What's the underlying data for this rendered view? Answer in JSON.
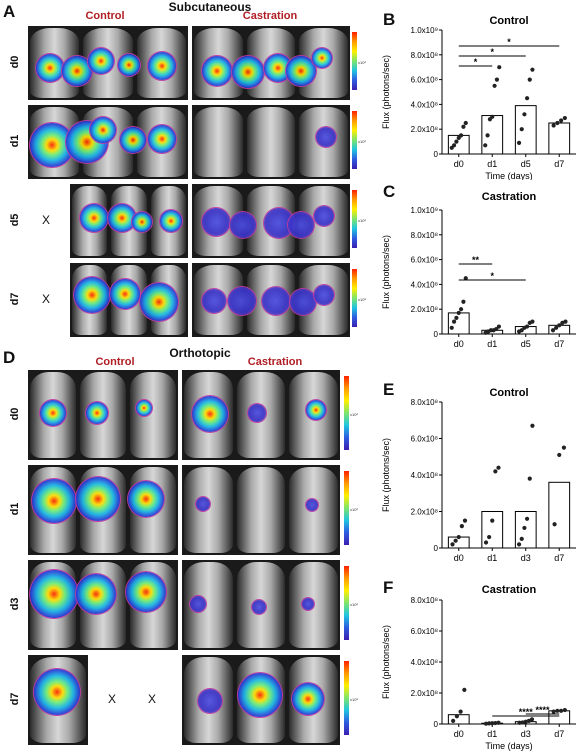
{
  "figure": {
    "panels": {
      "a": "A",
      "b": "B",
      "c": "C",
      "d": "D",
      "e": "E",
      "f": "F"
    },
    "top_section_title": "Subcutaneous",
    "bottom_section_title": "Orthotopic",
    "group_control": "Control",
    "group_castration": "Castration",
    "top_rows": [
      "d0",
      "d1",
      "d5",
      "d7"
    ],
    "bottom_rows": [
      "d0",
      "d1",
      "d3",
      "d7"
    ],
    "missing_mark": "X",
    "colorbar_unit": "x10⁶",
    "colorbar_title": "Luminescence"
  },
  "chart_data": [
    {
      "id": "B",
      "type": "bar",
      "title": "Control",
      "xlabel": "Time (days)",
      "ylabel": "Flux (photons/sec)",
      "categories": [
        "d0",
        "d1",
        "d5",
        "d7"
      ],
      "bar_values": [
        150000000.0,
        310000000.0,
        390000000.0,
        250000000.0
      ],
      "points": [
        [
          50000000.0,
          70000000.0,
          100000000.0,
          130000000.0,
          150000000.0,
          220000000.0,
          250000000.0
        ],
        [
          70000000.0,
          150000000.0,
          280000000.0,
          300000000.0,
          550000000.0,
          600000000.0,
          700000000.0
        ],
        [
          90000000.0,
          200000000.0,
          320000000.0,
          450000000.0,
          600000000.0,
          680000000.0
        ],
        [
          230000000.0,
          250000000.0,
          270000000.0,
          290000000.0
        ]
      ],
      "ylim": [
        0,
        1000000000.0
      ],
      "yticks": [
        "0",
        "2.0x10⁸",
        "4.0x10⁸",
        "6.0x10⁸",
        "8.0x10⁸",
        "1.0x10⁹"
      ],
      "significance": [
        {
          "from": "d0",
          "to": "d1",
          "label": "*"
        },
        {
          "from": "d0",
          "to": "d5",
          "label": "*"
        },
        {
          "from": "d0",
          "to": "d7",
          "label": "*"
        }
      ]
    },
    {
      "id": "C",
      "type": "bar",
      "title": "Castration",
      "xlabel": "Time (days)",
      "ylabel": "Flux (photons/sec)",
      "categories": [
        "d0",
        "d1",
        "d5",
        "d7"
      ],
      "bar_values": [
        170000000.0,
        30000000.0,
        60000000.0,
        70000000.0
      ],
      "points": [
        [
          50000000.0,
          100000000.0,
          130000000.0,
          170000000.0,
          200000000.0,
          260000000.0,
          450000000.0
        ],
        [
          10000000.0,
          20000000.0,
          30000000.0,
          30000000.0,
          40000000.0,
          60000000.0
        ],
        [
          20000000.0,
          30000000.0,
          50000000.0,
          60000000.0,
          90000000.0,
          100000000.0
        ],
        [
          30000000.0,
          50000000.0,
          70000000.0,
          90000000.0,
          100000000.0
        ]
      ],
      "ylim": [
        0,
        1000000000.0
      ],
      "yticks": [
        "0",
        "2.0x10⁸",
        "4.0x10⁸",
        "6.0x10⁸",
        "8.0x10⁸",
        "1.0x10⁹"
      ],
      "significance": [
        {
          "from": "d0",
          "to": "d1",
          "label": "**"
        },
        {
          "from": "d0",
          "to": "d5",
          "label": "*"
        }
      ]
    },
    {
      "id": "E",
      "type": "bar",
      "title": "Control",
      "xlabel": "",
      "ylabel": "Flux (photons/sec)",
      "categories": [
        "d0",
        "d1",
        "d3",
        "d7"
      ],
      "bar_values": [
        60000000.0,
        200000000.0,
        200000000.0,
        360000000.0
      ],
      "points": [
        [
          20000000.0,
          40000000.0,
          60000000.0,
          120000000.0,
          150000000.0
        ],
        [
          30000000.0,
          60000000.0,
          150000000.0,
          420000000.0,
          440000000.0
        ],
        [
          20000000.0,
          50000000.0,
          110000000.0,
          160000000.0,
          380000000.0,
          670000000.0
        ],
        [
          130000000.0,
          510000000.0,
          550000000.0
        ]
      ],
      "ylim": [
        0,
        800000000.0
      ],
      "yticks": [
        "0",
        "2.0x10⁸",
        "4.0x10⁸",
        "6.0x10⁸",
        "8.0x10⁸"
      ],
      "significance": []
    },
    {
      "id": "F",
      "type": "bar",
      "title": "Castration",
      "xlabel": "Time (days)",
      "ylabel": "Flux (photons/sec)",
      "categories": [
        "d0",
        "d1",
        "d3",
        "d7"
      ],
      "bar_values": [
        60000000.0,
        5000000.0,
        15000000.0,
        85000000.0
      ],
      "points": [
        [
          20000000.0,
          50000000.0,
          80000000.0,
          220000000.0
        ],
        [
          2000000.0,
          4000000.0,
          5000000.0,
          6000000.0,
          8000000.0
        ],
        [
          8000000.0,
          10000000.0,
          15000000.0,
          20000000.0,
          30000000.0
        ],
        [
          80000000.0,
          85000000.0,
          85000000.0,
          90000000.0
        ]
      ],
      "ylim": [
        0,
        800000000.0
      ],
      "yticks": [
        "0",
        "2.0x10⁸",
        "4.0x10⁸",
        "6.0x10⁸",
        "8.0x10⁸"
      ],
      "significance": [
        {
          "from": "d1",
          "to": "d7",
          "label": "****"
        },
        {
          "from": "d3",
          "to": "d7",
          "label": "****"
        }
      ]
    }
  ]
}
